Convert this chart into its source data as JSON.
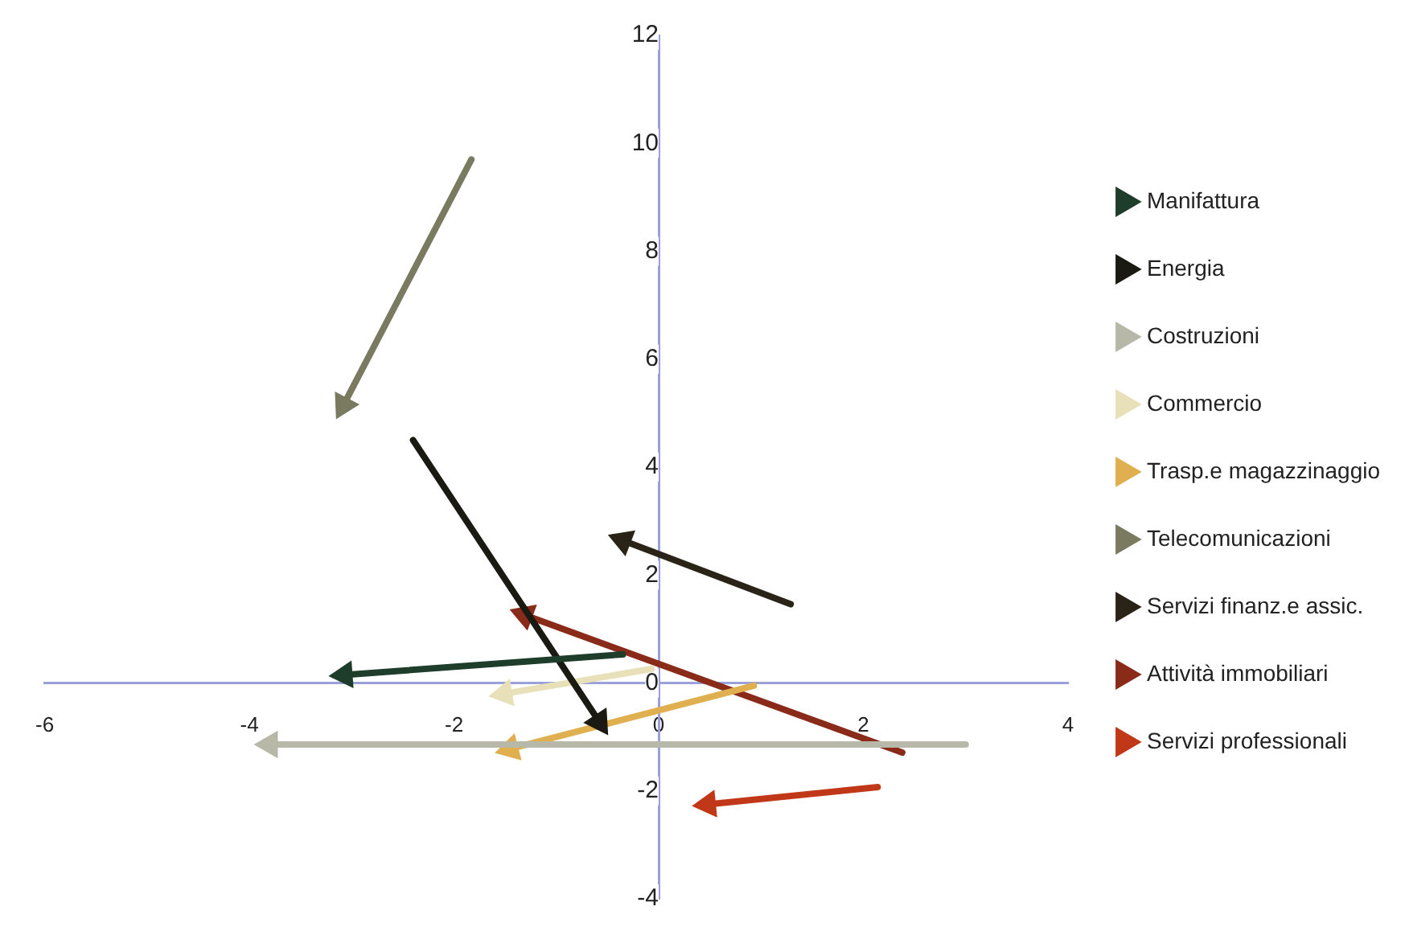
{
  "chart_data": {
    "type": "line",
    "xlim": [
      -6,
      4
    ],
    "xticks": [
      -6,
      -4,
      -2,
      0,
      2,
      4
    ],
    "ylim": [
      -4,
      12
    ],
    "yticks": [
      -4,
      -2,
      0,
      2,
      4,
      6,
      8,
      10,
      12
    ],
    "grid": false,
    "legend": "right",
    "marker": "triangle",
    "line_style": "solid",
    "series": [
      {
        "name": "Manifattura",
        "color": "#1f3d2b",
        "x": [
          -0.35,
          -3.07
        ],
        "values": [
          0.53,
          0.15
        ]
      },
      {
        "name": "Energia",
        "color": "#1a1a12",
        "x": [
          -2.4,
          -0.58
        ],
        "values": [
          4.5,
          -0.72
        ]
      },
      {
        "name": "Costruzioni",
        "color": "#b8b8a8",
        "x": [
          3.0,
          -3.8
        ],
        "values": [
          -1.14,
          -1.14
        ]
      },
      {
        "name": "Commercio",
        "color": "#e8e0b8",
        "x": [
          -0.07,
          -1.51
        ],
        "values": [
          0.26,
          -0.2
        ]
      },
      {
        "name": "Trasp.e magazzinaggio",
        "color": "#e0b050",
        "x": [
          0.93,
          -1.45
        ],
        "values": [
          -0.05,
          -1.22
        ]
      },
      {
        "name": "Telecomunicazioni",
        "color": "#7a7a60",
        "x": [
          -1.83,
          -3.08
        ],
        "values": [
          9.7,
          5.15
        ]
      },
      {
        "name": "Servizi finanz.e assic.",
        "color": "#2a2418",
        "x": [
          1.29,
          -0.35
        ],
        "values": [
          1.46,
          2.64
        ]
      },
      {
        "name": "Attività immobiliari",
        "color": "#8a2a18",
        "x": [
          2.38,
          -1.31
        ],
        "values": [
          -1.29,
          1.26
        ]
      },
      {
        "name": "Servizi professionali",
        "color": "#c03818",
        "x": [
          2.14,
          0.48
        ],
        "values": [
          -1.93,
          -2.25
        ]
      }
    ]
  }
}
